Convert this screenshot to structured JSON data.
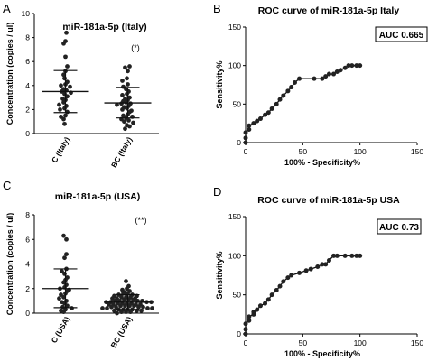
{
  "panels": {
    "A": {
      "letter": "A"
    },
    "B": {
      "letter": "B"
    },
    "C": {
      "letter": "C"
    },
    "D": {
      "letter": "D"
    }
  },
  "chart_data": [
    {
      "id": "A",
      "type": "scatter",
      "title": "miR-181a-5p (Italy)",
      "ylabel": "Concentration (copies / ul)",
      "ylim": [
        0,
        10
      ],
      "yticks": [
        "0",
        "2",
        "4",
        "6",
        "8",
        "10"
      ],
      "categories": [
        "C (Italy)",
        "BC (Italy)"
      ],
      "significance": "(*)",
      "groups": [
        {
          "name": "C (Italy)",
          "mean": 3.5,
          "sd_low": 1.75,
          "sd_high": 5.25,
          "values": [
            8.4,
            7.7,
            7.5,
            6.4,
            5.6,
            5.2,
            4.9,
            4.6,
            4.3,
            4.1,
            4.0,
            3.9,
            3.7,
            3.6,
            3.5,
            3.4,
            3.3,
            3.1,
            2.9,
            2.8,
            2.6,
            2.4,
            2.3,
            2.1,
            2.0,
            1.8,
            1.5,
            1.4,
            1.2,
            0.8
          ]
        },
        {
          "name": "BC (Italy)",
          "mean": 2.55,
          "sd_low": 1.3,
          "sd_high": 3.85,
          "values": [
            5.6,
            5.5,
            5.2,
            4.6,
            4.4,
            4.1,
            3.9,
            3.7,
            3.5,
            3.3,
            3.2,
            3.0,
            2.9,
            2.8,
            2.7,
            2.6,
            2.5,
            2.5,
            2.4,
            2.3,
            2.2,
            2.1,
            2.0,
            1.9,
            1.8,
            1.6,
            1.5,
            1.4,
            1.3,
            1.2,
            1.1,
            1.0,
            0.9,
            0.7,
            0.6,
            0.4
          ]
        }
      ]
    },
    {
      "id": "B",
      "type": "line",
      "title": "ROC curve of miR-181a-5p Italy",
      "xlabel": "100% - Specificity%",
      "ylabel": "Sensitivity%",
      "xlim": [
        0,
        150
      ],
      "ylim": [
        0,
        150
      ],
      "xticks": [
        "0",
        "50",
        "100",
        "150"
      ],
      "yticks": [
        "0",
        "50",
        "100",
        "150"
      ],
      "auc_label": "AUC 0.665",
      "x": [
        0,
        0,
        0,
        3,
        3,
        7,
        10,
        13,
        17,
        20,
        23,
        27,
        30,
        33,
        37,
        40,
        43,
        47,
        60,
        67,
        70,
        73,
        77,
        80,
        83,
        87,
        90,
        93,
        97,
        100
      ],
      "y": [
        0,
        6,
        13,
        17,
        22,
        25,
        28,
        31,
        36,
        39,
        44,
        50,
        56,
        61,
        67,
        72,
        78,
        83,
        83,
        83,
        86,
        89,
        89,
        92,
        94,
        97,
        100,
        100,
        100,
        100
      ]
    },
    {
      "id": "C",
      "type": "scatter",
      "title": "miR-181a-5p (USA)",
      "ylabel": "Concentration (copies / ul)",
      "ylim": [
        0,
        8
      ],
      "yticks": [
        "0",
        "2",
        "4",
        "6",
        "8"
      ],
      "categories": [
        "C (USA)",
        "BC (USA)"
      ],
      "significance": "(**)",
      "groups": [
        {
          "name": "C (USA)",
          "mean": 2.0,
          "sd_low": 0.45,
          "sd_high": 3.6,
          "values": [
            6.3,
            6.0,
            4.8,
            4.5,
            3.6,
            3.4,
            3.2,
            2.9,
            2.7,
            2.5,
            2.3,
            2.1,
            2.0,
            1.9,
            1.8,
            1.6,
            1.5,
            1.3,
            1.2,
            1.0,
            0.9,
            0.8,
            0.6,
            0.5,
            0.4,
            0.3,
            0.2,
            0.1
          ]
        },
        {
          "name": "BC (USA)",
          "mean": 0.9,
          "sd_low": 0.3,
          "sd_high": 1.5,
          "values": [
            2.6,
            2.2,
            2.0,
            1.9,
            1.8,
            1.7,
            1.6,
            1.6,
            1.5,
            1.5,
            1.4,
            1.4,
            1.3,
            1.3,
            1.3,
            1.2,
            1.2,
            1.2,
            1.1,
            1.1,
            1.1,
            1.0,
            1.0,
            1.0,
            1.0,
            0.9,
            0.9,
            0.9,
            0.9,
            0.8,
            0.8,
            0.8,
            0.8,
            0.7,
            0.7,
            0.7,
            0.7,
            0.6,
            0.6,
            0.6,
            0.6,
            0.5,
            0.5,
            0.5,
            0.5,
            0.4,
            0.4,
            0.4,
            0.4,
            0.3,
            0.3,
            0.3,
            0.3,
            0.2,
            0.2,
            0.2,
            0.1,
            0.1,
            0.1,
            0.0
          ]
        }
      ]
    },
    {
      "id": "D",
      "type": "line",
      "title": "ROC curve of miR-181a-5p USA",
      "xlabel": "100% - Specificity%",
      "ylabel": "Sensitivity%",
      "xlim": [
        0,
        150
      ],
      "ylim": [
        0,
        150
      ],
      "xticks": [
        "0",
        "50",
        "100",
        "150"
      ],
      "yticks": [
        "0",
        "50",
        "100",
        "150"
      ],
      "auc_label": "AUC 0.73",
      "x": [
        0,
        0,
        0,
        3,
        3,
        7,
        7,
        10,
        13,
        17,
        20,
        23,
        27,
        30,
        33,
        37,
        40,
        47,
        53,
        57,
        63,
        67,
        70,
        73,
        77,
        80,
        87,
        93,
        97,
        100
      ],
      "y": [
        0,
        6,
        13,
        17,
        22,
        25,
        28,
        31,
        36,
        39,
        44,
        50,
        56,
        61,
        67,
        72,
        75,
        78,
        81,
        83,
        86,
        89,
        89,
        94,
        100,
        100,
        100,
        100,
        100,
        100
      ]
    }
  ]
}
